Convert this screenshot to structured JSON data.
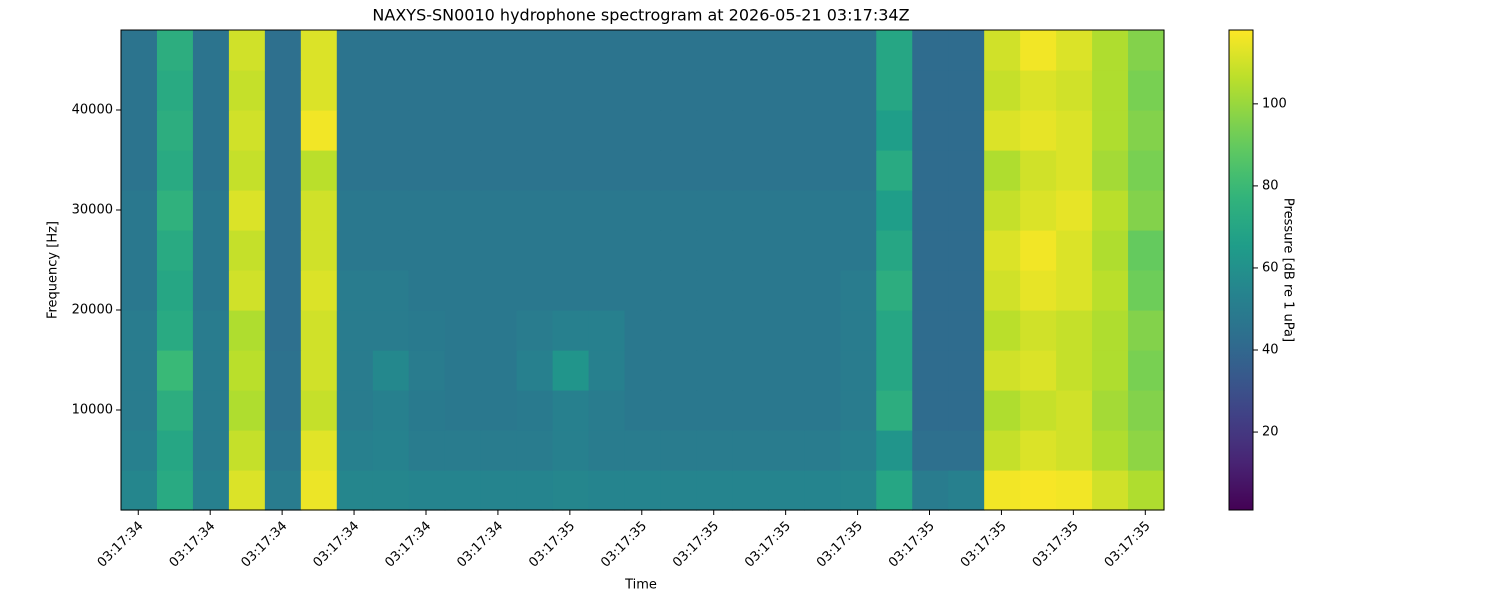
{
  "chart_data": {
    "type": "heatmap",
    "title": "NAXYS-SN0010 hydrophone spectrogram at 2026-05-21 03:17:34Z",
    "x_label": "Time",
    "y_label": "Frequency [Hz]",
    "colormap": "viridis",
    "x": [
      34.401,
      34.451,
      34.501,
      34.551,
      34.601,
      34.651,
      34.701,
      34.751,
      34.801,
      34.851,
      34.901,
      34.951,
      35.001,
      35.051,
      35.101,
      35.151,
      35.201,
      35.251,
      35.301,
      35.351,
      35.401,
      35.451,
      35.501,
      35.551,
      35.601,
      35.651,
      35.701,
      35.751,
      35.801
    ],
    "y": [
      2000,
      6000,
      10000,
      14000,
      18000,
      22000,
      26000,
      30000,
      34000,
      38000,
      42000,
      46000
    ],
    "z": [
      [
        55,
        72,
        52,
        112,
        50,
        115,
        55,
        55,
        54,
        54,
        54,
        54,
        55,
        54,
        54,
        54,
        54,
        54,
        54,
        54,
        55,
        70,
        50,
        52,
        116,
        117,
        116,
        110,
        104
      ],
      [
        52,
        70,
        50,
        108,
        47,
        113,
        52,
        53,
        50,
        50,
        50,
        50,
        52,
        50,
        50,
        50,
        50,
        50,
        50,
        50,
        52,
        62,
        44,
        44,
        108,
        112,
        110,
        104,
        98
      ],
      [
        50,
        74,
        50,
        104,
        45,
        108,
        50,
        52,
        49,
        48,
        48,
        49,
        52,
        50,
        48,
        48,
        48,
        48,
        48,
        48,
        50,
        74,
        42,
        42,
        104,
        108,
        110,
        102,
        96
      ],
      [
        50,
        80,
        50,
        106,
        45,
        110,
        50,
        56,
        50,
        48,
        48,
        52,
        62,
        52,
        48,
        48,
        48,
        48,
        48,
        48,
        50,
        70,
        42,
        42,
        110,
        112,
        108,
        104,
        94
      ],
      [
        50,
        72,
        50,
        104,
        44,
        110,
        50,
        50,
        49,
        48,
        48,
        50,
        52,
        52,
        48,
        48,
        48,
        48,
        48,
        48,
        50,
        70,
        42,
        42,
        106,
        110,
        108,
        104,
        96
      ],
      [
        48,
        70,
        48,
        110,
        44,
        112,
        50,
        50,
        48,
        48,
        48,
        48,
        48,
        48,
        48,
        48,
        48,
        48,
        48,
        48,
        50,
        74,
        42,
        42,
        110,
        114,
        112,
        106,
        92
      ],
      [
        48,
        72,
        48,
        108,
        44,
        110,
        48,
        48,
        48,
        48,
        48,
        48,
        48,
        48,
        48,
        48,
        48,
        48,
        48,
        48,
        48,
        70,
        42,
        42,
        112,
        116,
        112,
        104,
        90
      ],
      [
        48,
        76,
        48,
        112,
        44,
        110,
        48,
        48,
        48,
        48,
        48,
        48,
        48,
        48,
        48,
        48,
        48,
        48,
        48,
        48,
        48,
        66,
        42,
        42,
        108,
        112,
        114,
        106,
        96
      ],
      [
        46,
        72,
        46,
        108,
        44,
        106,
        46,
        46,
        46,
        46,
        46,
        46,
        46,
        46,
        46,
        46,
        46,
        46,
        46,
        46,
        46,
        72,
        42,
        42,
        104,
        110,
        112,
        102,
        94
      ],
      [
        46,
        74,
        46,
        110,
        44,
        116,
        46,
        46,
        46,
        46,
        46,
        46,
        46,
        46,
        46,
        46,
        46,
        46,
        46,
        46,
        46,
        66,
        42,
        42,
        112,
        114,
        112,
        104,
        96
      ],
      [
        46,
        72,
        46,
        108,
        44,
        112,
        46,
        46,
        46,
        46,
        46,
        46,
        46,
        46,
        46,
        46,
        46,
        46,
        46,
        46,
        46,
        70,
        42,
        42,
        108,
        112,
        110,
        104,
        94
      ],
      [
        46,
        74,
        46,
        110,
        44,
        112,
        46,
        46,
        46,
        46,
        46,
        46,
        46,
        46,
        46,
        46,
        46,
        46,
        46,
        46,
        46,
        70,
        42,
        42,
        110,
        116,
        112,
        104,
        96
      ]
    ],
    "xlim": [
      34.376,
      35.826
    ],
    "xticks": [
      {
        "value": 34.4,
        "label": "03:17:34"
      },
      {
        "value": 34.5,
        "label": "03:17:34"
      },
      {
        "value": 34.6,
        "label": "03:17:34"
      },
      {
        "value": 34.7,
        "label": "03:17:34"
      },
      {
        "value": 34.8,
        "label": "03:17:34"
      },
      {
        "value": 34.9,
        "label": "03:17:34"
      },
      {
        "value": 35.0,
        "label": "03:17:35"
      },
      {
        "value": 35.1,
        "label": "03:17:35"
      },
      {
        "value": 35.2,
        "label": "03:17:35"
      },
      {
        "value": 35.3,
        "label": "03:17:35"
      },
      {
        "value": 35.4,
        "label": "03:17:35"
      },
      {
        "value": 35.5,
        "label": "03:17:35"
      },
      {
        "value": 35.6,
        "label": "03:17:35"
      },
      {
        "value": 35.7,
        "label": "03:17:35"
      },
      {
        "value": 35.8,
        "label": "03:17:35"
      }
    ],
    "ylim": [
      0,
      48000
    ],
    "yticks": [
      10000,
      20000,
      30000,
      40000
    ],
    "colorbar": {
      "label": "Pressure [dB re 1 uPa]",
      "lim": [
        1,
        118
      ],
      "ticks": [
        20,
        40,
        60,
        80,
        100
      ]
    }
  }
}
